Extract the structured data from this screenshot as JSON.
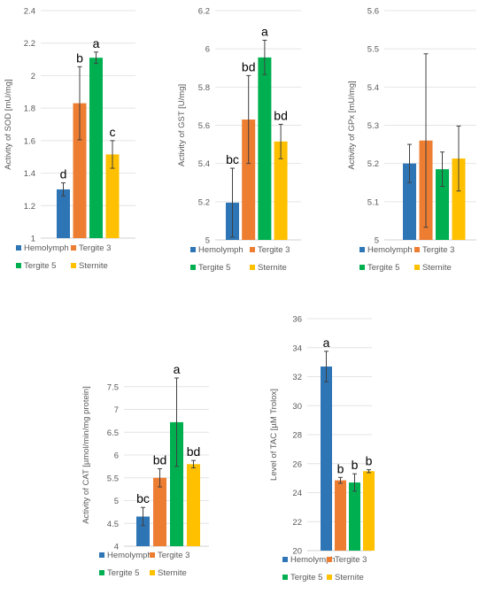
{
  "legend": {
    "items": [
      {
        "label": "Hemolymph",
        "color": "#2E75B6"
      },
      {
        "label": "Tergite 3",
        "color": "#ED7D31"
      },
      {
        "label": "Tergite 5",
        "color": "#00B050"
      },
      {
        "label": "Sternite",
        "color": "#FFC000"
      }
    ]
  },
  "chart_data": [
    {
      "id": "sod",
      "type": "bar",
      "ylabel": "Activity of SOD [mU/mg]",
      "ylim": [
        1,
        2.4
      ],
      "yticks": [
        1,
        1.2,
        1.4,
        1.6,
        1.8,
        2,
        2.2,
        2.4
      ],
      "ytick_labels": [
        "1",
        "1.2",
        "1.4",
        "1.6",
        "1.8",
        "2",
        "2.2",
        "2.4"
      ],
      "categories": [
        "Hemolymph",
        "Tergite 3",
        "Tergite 5",
        "Sternite"
      ],
      "values": [
        1.3,
        1.83,
        2.11,
        1.515
      ],
      "errors": [
        0.04,
        0.225,
        0.035,
        0.085
      ],
      "letters": [
        "d",
        "b",
        "a",
        "c"
      ]
    },
    {
      "id": "gst",
      "type": "bar",
      "ylabel": "Activity of GST [U/mg]",
      "ylim": [
        5,
        6.2
      ],
      "yticks": [
        5,
        5.2,
        5.4,
        5.6,
        5.8,
        6,
        6.2
      ],
      "ytick_labels": [
        "5",
        "5.2",
        "5.4",
        "5.6",
        "5.8",
        "6",
        "6.2"
      ],
      "categories": [
        "Hemolymph",
        "Tergite 3",
        "Tergite 5",
        "Sternite"
      ],
      "values": [
        5.195,
        5.63,
        5.955,
        5.515
      ],
      "errors": [
        0.18,
        0.23,
        0.09,
        0.09
      ],
      "letters": [
        "bc",
        "bd",
        "a",
        "bd"
      ]
    },
    {
      "id": "gpx",
      "type": "bar",
      "ylabel": "Activity of GPx [mU/mg]",
      "ylim": [
        5,
        5.6
      ],
      "yticks": [
        5,
        5.1,
        5.2,
        5.3,
        5.4,
        5.5,
        5.6
      ],
      "ytick_labels": [
        "5",
        "5.1",
        "5.2",
        "5.3",
        "5.4",
        "5.5",
        "5.6"
      ],
      "categories": [
        "Hemolymph",
        "Tergite 3",
        "Tergite 5",
        "Sternite"
      ],
      "values": [
        5.2,
        5.26,
        5.185,
        5.213
      ],
      "errors": [
        0.05,
        0.227,
        0.045,
        0.085
      ],
      "letters": [
        "",
        "",
        "",
        ""
      ]
    },
    {
      "id": "cat",
      "type": "bar",
      "ylabel": "Activity of CAT [µmol/min/mg protein]",
      "ylim": [
        4,
        8
      ],
      "yticks": [
        4,
        4.5,
        5,
        5.5,
        6,
        6.5,
        7,
        7.5
      ],
      "ytick_labels": [
        "4",
        "4.5",
        "5",
        "5.5",
        "6",
        "6.5",
        "7",
        "7.5"
      ],
      "categories": [
        "Hemolymph",
        "Tergite 3",
        "Tergite 5",
        "Sternite"
      ],
      "values": [
        4.65,
        5.5,
        6.72,
        5.8
      ],
      "errors": [
        0.2,
        0.2,
        0.97,
        0.08
      ],
      "letters": [
        "bc",
        "bd",
        "a",
        "bd"
      ]
    },
    {
      "id": "tac",
      "type": "bar",
      "ylabel": "Level of TAC [µM Trolox]",
      "ylim": [
        20,
        36
      ],
      "yticks": [
        20,
        22,
        24,
        26,
        28,
        30,
        32,
        34,
        36
      ],
      "ytick_labels": [
        "20",
        "22",
        "24",
        "26",
        "28",
        "30",
        "32",
        "34",
        "36"
      ],
      "categories": [
        "Hemolymph",
        "Tergite 3",
        "Tergite 5",
        "Sternite"
      ],
      "values": [
        32.7,
        24.85,
        24.7,
        25.48
      ],
      "errors": [
        1.05,
        0.2,
        0.6,
        0.1
      ],
      "letters": [
        "a",
        "b",
        "b",
        "b"
      ]
    }
  ]
}
